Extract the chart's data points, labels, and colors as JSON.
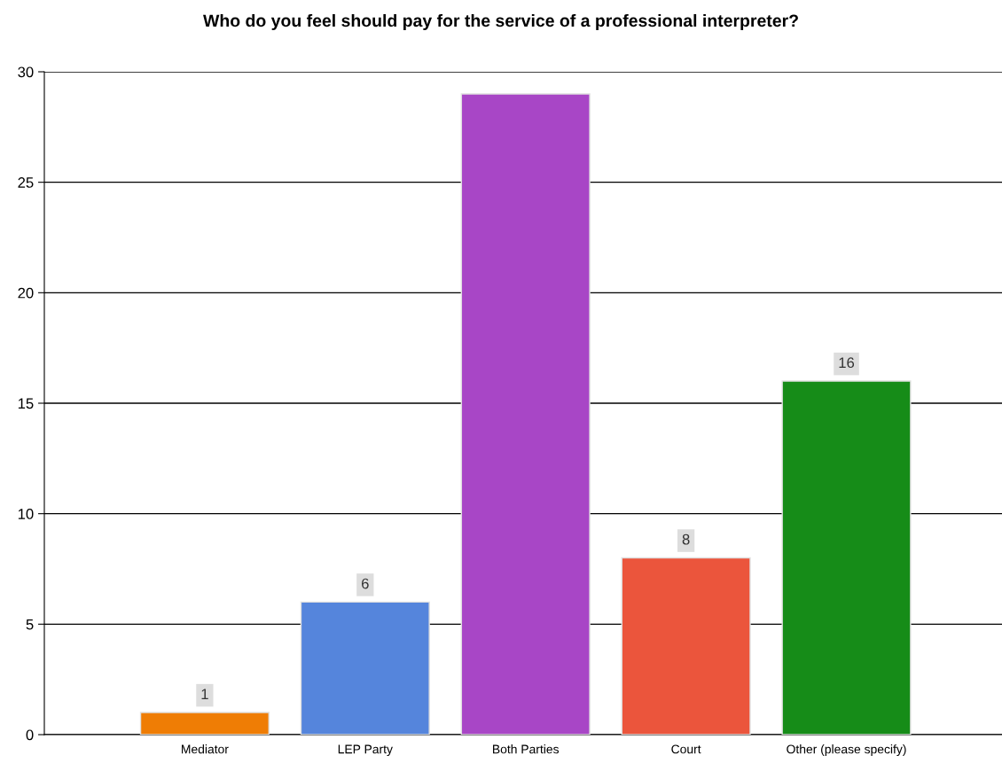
{
  "chart_data": {
    "type": "bar",
    "title": "Who do you feel should pay for the service of a professional interpreter?",
    "categories": [
      "Mediator",
      "LEP Party",
      "Both Parties",
      "Court",
      "Other (please specify)"
    ],
    "values": [
      1,
      6,
      29,
      8,
      16
    ],
    "colors": [
      "#ef7d05",
      "#5585dc",
      "#a846c6",
      "#eb553c",
      "#168c18"
    ],
    "value_labels": [
      "1",
      "6",
      null,
      "8",
      "16"
    ],
    "ylim": [
      0,
      30
    ],
    "yticks": [
      0,
      5,
      10,
      15,
      20,
      25,
      30
    ],
    "grid": "y"
  }
}
